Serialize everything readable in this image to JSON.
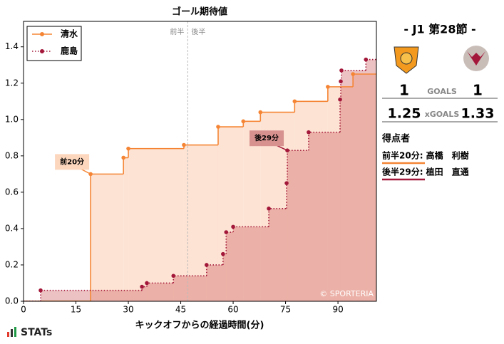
{
  "chart_data": {
    "type": "step",
    "title": "ゴール期待値",
    "x_label": "キックオフからの経過時間(分)",
    "xlim": [
      0,
      101
    ],
    "ylim": [
      0,
      1.54
    ],
    "xticks": [
      0,
      15,
      30,
      45,
      60,
      75,
      90
    ],
    "yticks": [
      {
        "value": 0,
        "label": "0.0"
      },
      0.2,
      0.4,
      0.6,
      0.8,
      {
        "value": 1,
        "label": "1.0"
      },
      1.2,
      1.4
    ],
    "legend": "upper left",
    "halftime": {
      "x": 47,
      "labels": [
        "前半",
        "後半"
      ]
    },
    "series": [
      {
        "name": "清水",
        "color": "#f58535",
        "line": "solid",
        "area": "#fde3d3",
        "x": [
          19.2,
          28.6,
          30,
          45.9,
          55.7,
          62.9,
          67.8,
          77.6,
          87.1,
          94.3
        ],
        "values": [
          0.7,
          0.79,
          0.84,
          0.86,
          0.96,
          0.99,
          1.04,
          1.1,
          1.18,
          1.25
        ]
      },
      {
        "name": "鹿島",
        "color": "#a3183a",
        "line": "dotted",
        "area": "rgba(205,95,95,0.38)",
        "x": [
          4.9,
          33.9,
          35.3,
          42.9,
          52.4,
          57.1,
          58,
          60,
          70.2,
          75.3,
          75.5,
          81.6,
          90.6,
          90.8,
          91,
          98
        ],
        "values": [
          0.06,
          0.08,
          0.1,
          0.14,
          0.2,
          0.26,
          0.38,
          0.41,
          0.51,
          0.65,
          0.83,
          0.93,
          1.11,
          1.21,
          1.27,
          1.33
        ]
      }
    ],
    "annotations": [
      "前20分",
      "後29分"
    ],
    "watermark": "© SPORTERIA"
  },
  "panel": {
    "round": "- J1 第28節 -",
    "home_goals": 1,
    "goals_label": "GOALS",
    "away_goals": 1,
    "home_xg": 1.25,
    "xg_label": "xGOALS",
    "away_xg": 1.33,
    "scorers_title": "得点者",
    "scorers": [
      "前半20分: 高橋　利樹",
      "後半29分: 植田　直通"
    ]
  },
  "brand": "STATs"
}
